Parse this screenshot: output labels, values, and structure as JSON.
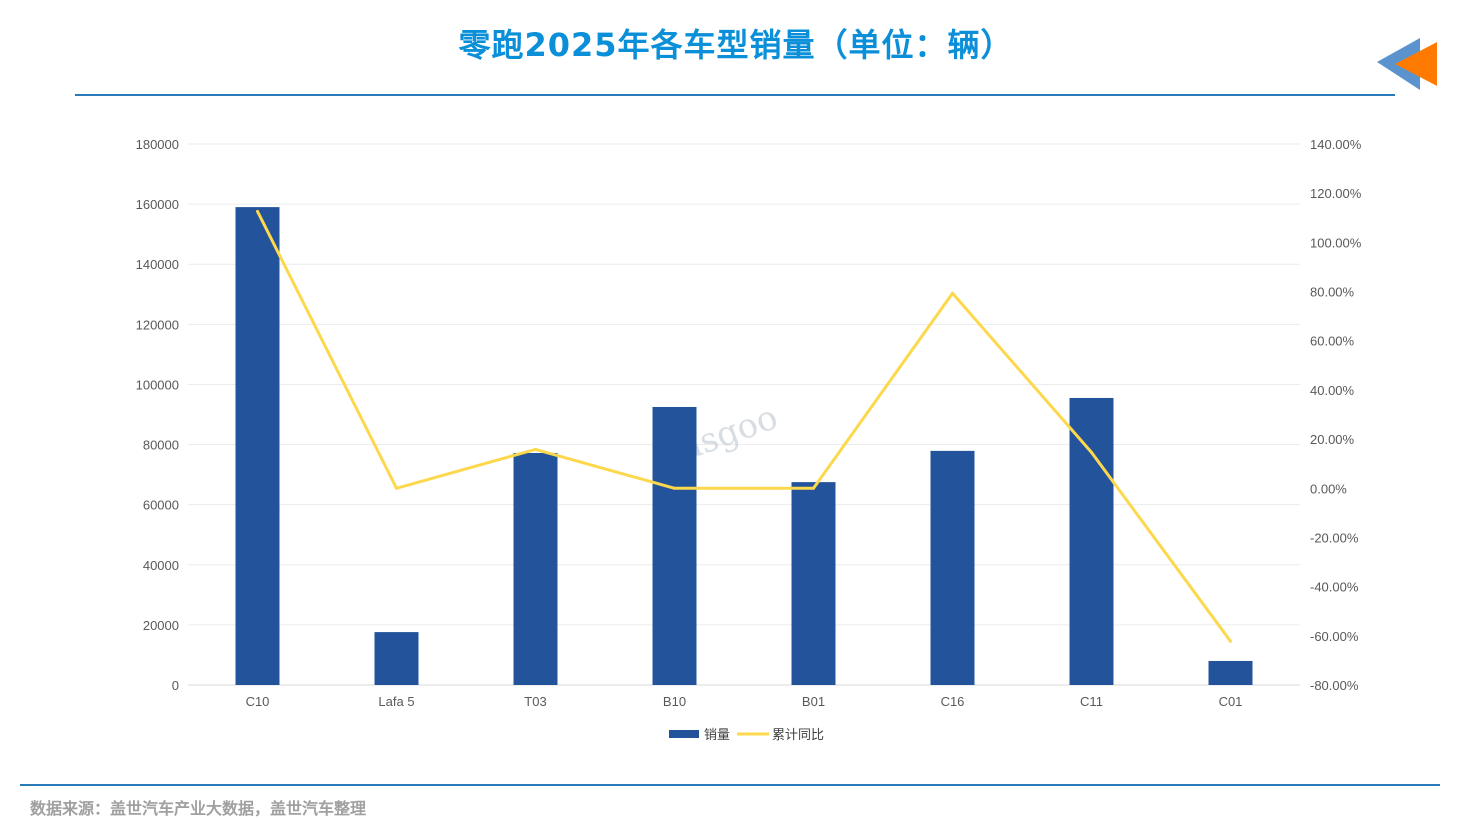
{
  "title": "零跑2025年各车型销量（单位：辆）",
  "source": "数据来源：盖世汽车产业大数据，盖世汽车整理",
  "watermark": "盖世汽车 Gasgoo auto.gasgoo.com",
  "chart_data": {
    "type": "bar+line",
    "categories": [
      "C10",
      "Lafa 5",
      "T03",
      "B10",
      "B01",
      "C16",
      "C11",
      "C01"
    ],
    "series": [
      {
        "name": "销量",
        "type": "bar",
        "axis": "left",
        "color": "#23549b",
        "values": [
          159000,
          17600,
          77200,
          92500,
          67500,
          77900,
          95500,
          8000
        ]
      },
      {
        "name": "累计同比",
        "type": "line",
        "axis": "right",
        "color": "#fdd84d",
        "values": [
          112.6,
          0,
          15.8,
          0,
          0,
          79.3,
          14.6,
          -62.2
        ]
      }
    ],
    "ylim_left": [
      0,
      180000
    ],
    "yticks_left": [
      "0",
      "20000",
      "40000",
      "60000",
      "80000",
      "100000",
      "120000",
      "140000",
      "160000",
      "180000"
    ],
    "ylim_right": [
      -80,
      140
    ],
    "yticks_right": [
      "-80.00%",
      "-60.00%",
      "-40.00%",
      "-20.00%",
      "0.00%",
      "20.00%",
      "40.00%",
      "60.00%",
      "80.00%",
      "100.00%",
      "120.00%",
      "140.00%"
    ],
    "grid": true,
    "legend": "bottom"
  }
}
